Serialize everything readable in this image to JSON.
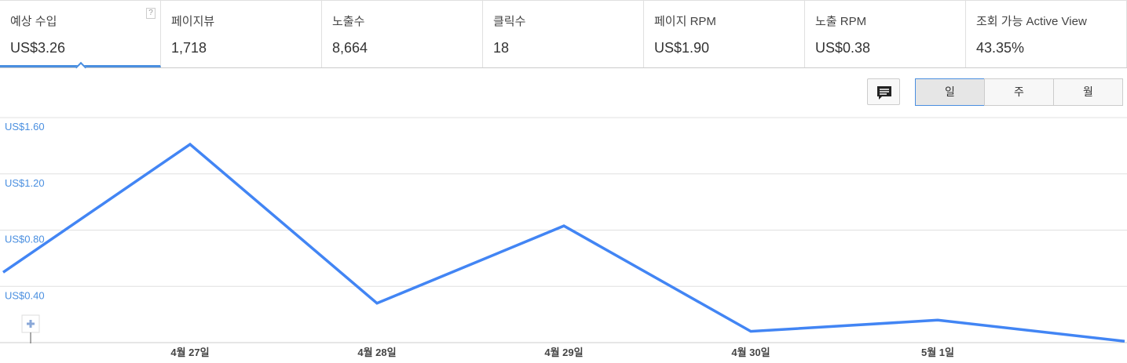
{
  "tabs": [
    {
      "label": "예상 수입",
      "value": "US$3.26",
      "help": "?"
    },
    {
      "label": "페이지뷰",
      "value": "1,718"
    },
    {
      "label": "노출수",
      "value": "8,664"
    },
    {
      "label": "클릭수",
      "value": "18"
    },
    {
      "label": "페이지 RPM",
      "value": "US$1.90"
    },
    {
      "label": "노출 RPM",
      "value": "US$0.38"
    },
    {
      "label": "조회 가능 Active View",
      "value": "43.35%"
    }
  ],
  "buttons": [
    "일",
    "주",
    "월"
  ],
  "chart_data": {
    "type": "line",
    "categories": [
      null,
      "4월 27일",
      "4월 28일",
      "4월 29일",
      "4월 30일",
      "5월 1일",
      null
    ],
    "series": [
      {
        "name": "예상 수입",
        "color": "#4285f4",
        "values": [
          0.5,
          1.41,
          0.28,
          0.83,
          0.08,
          0.16,
          0.01
        ]
      }
    ],
    "ylim": [
      0,
      1.6
    ],
    "yticks": [
      {
        "value": 0.4,
        "label": "US$0.40"
      },
      {
        "value": 0.8,
        "label": "US$0.80"
      },
      {
        "value": 1.2,
        "label": "US$1.20"
      },
      {
        "value": 1.6,
        "label": "US$1.60"
      }
    ],
    "grid": true
  }
}
